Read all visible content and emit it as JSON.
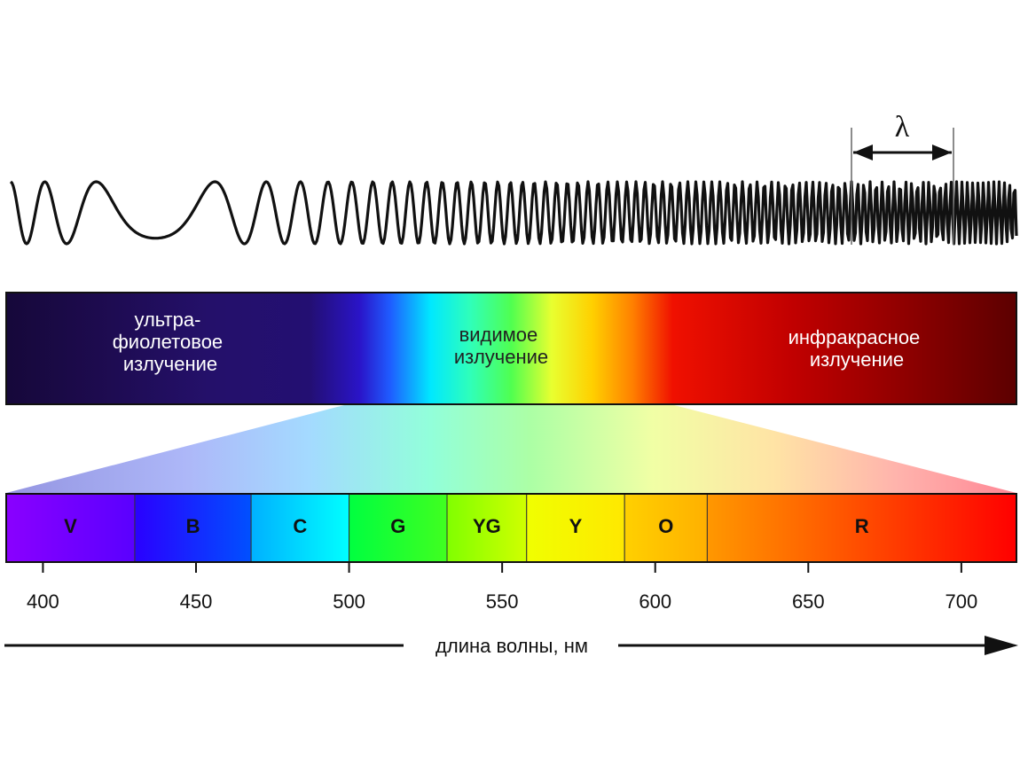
{
  "wave": {
    "lambda_symbol": "λ"
  },
  "spectrum_band": {
    "regions": [
      {
        "id": "uv",
        "lines": [
          "ультра-",
          "фиолетовое",
          "излучение"
        ]
      },
      {
        "id": "visible",
        "lines": [
          "видимое",
          "излучение"
        ]
      },
      {
        "id": "ir",
        "lines": [
          "инфракрасное",
          "излучение"
        ]
      }
    ]
  },
  "color_bands": [
    {
      "letter": "V",
      "from": 388,
      "to": 430,
      "colors": [
        "#8a00ff",
        "#5a00ff"
      ]
    },
    {
      "letter": "B",
      "from": 430,
      "to": 468,
      "colors": [
        "#2a00ff",
        "#0050ff"
      ]
    },
    {
      "letter": "C",
      "from": 468,
      "to": 500,
      "colors": [
        "#00b0ff",
        "#00ffff"
      ]
    },
    {
      "letter": "G",
      "from": 500,
      "to": 532,
      "colors": [
        "#00ff40",
        "#40ff20"
      ]
    },
    {
      "letter": "YG",
      "from": 532,
      "to": 558,
      "colors": [
        "#80ff00",
        "#d0ff00"
      ]
    },
    {
      "letter": "Y",
      "from": 558,
      "to": 590,
      "colors": [
        "#f0ff00",
        "#ffe800"
      ]
    },
    {
      "letter": "O",
      "from": 590,
      "to": 617,
      "colors": [
        "#ffd000",
        "#ffb000"
      ]
    },
    {
      "letter": "R",
      "from": 617,
      "to": 718,
      "colors": [
        "#ff9800",
        "#ff0000"
      ]
    }
  ],
  "axis": {
    "min": 388,
    "max": 718,
    "ticks": [
      400,
      450,
      500,
      550,
      600,
      650,
      700
    ],
    "label": "длина волны, нм"
  }
}
